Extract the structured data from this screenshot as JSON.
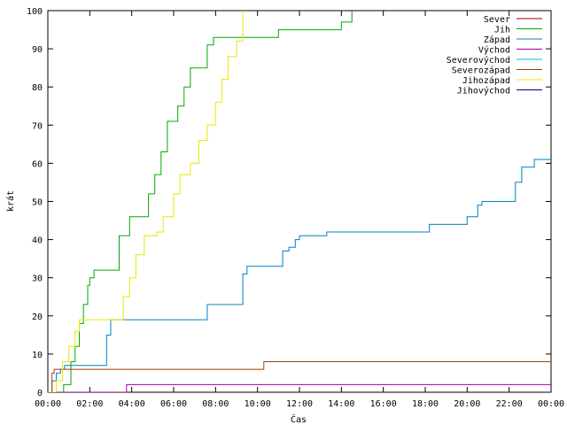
{
  "chart_data": {
    "type": "line",
    "title": "",
    "xlabel": "Čas",
    "ylabel": "krát",
    "xlim": [
      0,
      24
    ],
    "ylim": [
      0,
      100
    ],
    "x_ticks": [
      0,
      2,
      4,
      6,
      8,
      10,
      12,
      14,
      16,
      18,
      20,
      22,
      24
    ],
    "x_tick_labels": [
      "00:00",
      "02:00",
      "04:00",
      "06:00",
      "08:00",
      "10:00",
      "12:00",
      "14:00",
      "16:00",
      "18:00",
      "20:00",
      "22:00",
      "00:00"
    ],
    "y_ticks": [
      0,
      10,
      20,
      30,
      40,
      50,
      60,
      70,
      80,
      90,
      100
    ],
    "legend_position": "top-right",
    "grid": false,
    "series": [
      {
        "name": "Sever",
        "color": "#8b0000",
        "points": []
      },
      {
        "name": "Jih",
        "color": "#00aa00",
        "points": [
          [
            0.75,
            0
          ],
          [
            0.75,
            2
          ],
          [
            1.0,
            2
          ],
          [
            1.1,
            8
          ],
          [
            1.3,
            12
          ],
          [
            1.5,
            18
          ],
          [
            1.7,
            23
          ],
          [
            1.9,
            28
          ],
          [
            2.0,
            30
          ],
          [
            2.2,
            32
          ],
          [
            3.0,
            32
          ],
          [
            3.4,
            41
          ],
          [
            3.7,
            41
          ],
          [
            3.9,
            46
          ],
          [
            4.5,
            46
          ],
          [
            4.8,
            52
          ],
          [
            5.1,
            57
          ],
          [
            5.4,
            63
          ],
          [
            5.7,
            71
          ],
          [
            6.0,
            71
          ],
          [
            6.2,
            75
          ],
          [
            6.5,
            80
          ],
          [
            6.8,
            85
          ],
          [
            7.2,
            85
          ],
          [
            7.6,
            91
          ],
          [
            7.9,
            93
          ],
          [
            10.9,
            93
          ],
          [
            11.0,
            95
          ],
          [
            13.9,
            95
          ],
          [
            14.0,
            97
          ],
          [
            14.5,
            100
          ]
        ]
      },
      {
        "name": "Západ",
        "color": "#0080c0",
        "points": [
          [
            0,
            0
          ],
          [
            0.2,
            3
          ],
          [
            0.4,
            5
          ],
          [
            0.6,
            6
          ],
          [
            0.8,
            7
          ],
          [
            2.5,
            7
          ],
          [
            2.8,
            15
          ],
          [
            3.0,
            19
          ],
          [
            7.3,
            19
          ],
          [
            7.6,
            23
          ],
          [
            8.9,
            23
          ],
          [
            9.3,
            31
          ],
          [
            9.5,
            33
          ],
          [
            11.0,
            33
          ],
          [
            11.2,
            37
          ],
          [
            11.5,
            38
          ],
          [
            11.8,
            40
          ],
          [
            12.0,
            41
          ],
          [
            13.1,
            41
          ],
          [
            13.3,
            42
          ],
          [
            18.1,
            42
          ],
          [
            18.2,
            44
          ],
          [
            19.9,
            44
          ],
          [
            20.0,
            46
          ],
          [
            20.5,
            49
          ],
          [
            20.7,
            50
          ],
          [
            21.9,
            50
          ],
          [
            22.3,
            55
          ],
          [
            22.6,
            59
          ],
          [
            23.0,
            59
          ],
          [
            23.2,
            61
          ],
          [
            24,
            61
          ]
        ]
      },
      {
        "name": "Východ",
        "color": "#a000a0",
        "points": [
          [
            0,
            0
          ],
          [
            3.75,
            0
          ],
          [
            3.75,
            2
          ],
          [
            24,
            2
          ]
        ]
      },
      {
        "name": "Severovýchod",
        "color": "#00c0c0",
        "points": []
      },
      {
        "name": "Severozápad",
        "color": "#a04000",
        "points": [
          [
            0,
            0
          ],
          [
            0.2,
            5
          ],
          [
            0.3,
            6
          ],
          [
            10.2,
            6
          ],
          [
            10.3,
            8
          ],
          [
            24,
            8
          ]
        ]
      },
      {
        "name": "Jihozápad",
        "color": "#e8e800",
        "points": [
          [
            0,
            0
          ],
          [
            0.4,
            3
          ],
          [
            0.7,
            8
          ],
          [
            1.0,
            12
          ],
          [
            1.3,
            16
          ],
          [
            1.5,
            19
          ],
          [
            3.4,
            19
          ],
          [
            3.6,
            25
          ],
          [
            3.9,
            30
          ],
          [
            4.2,
            36
          ],
          [
            4.6,
            41
          ],
          [
            5.2,
            42
          ],
          [
            5.5,
            46
          ],
          [
            6.0,
            52
          ],
          [
            6.3,
            57
          ],
          [
            6.8,
            60
          ],
          [
            7.2,
            66
          ],
          [
            7.6,
            70
          ],
          [
            8.0,
            76
          ],
          [
            8.3,
            82
          ],
          [
            8.6,
            88
          ],
          [
            9.0,
            92
          ],
          [
            9.3,
            100
          ]
        ]
      },
      {
        "name": "Jihovýchod",
        "color": "#000080",
        "points": []
      }
    ]
  }
}
